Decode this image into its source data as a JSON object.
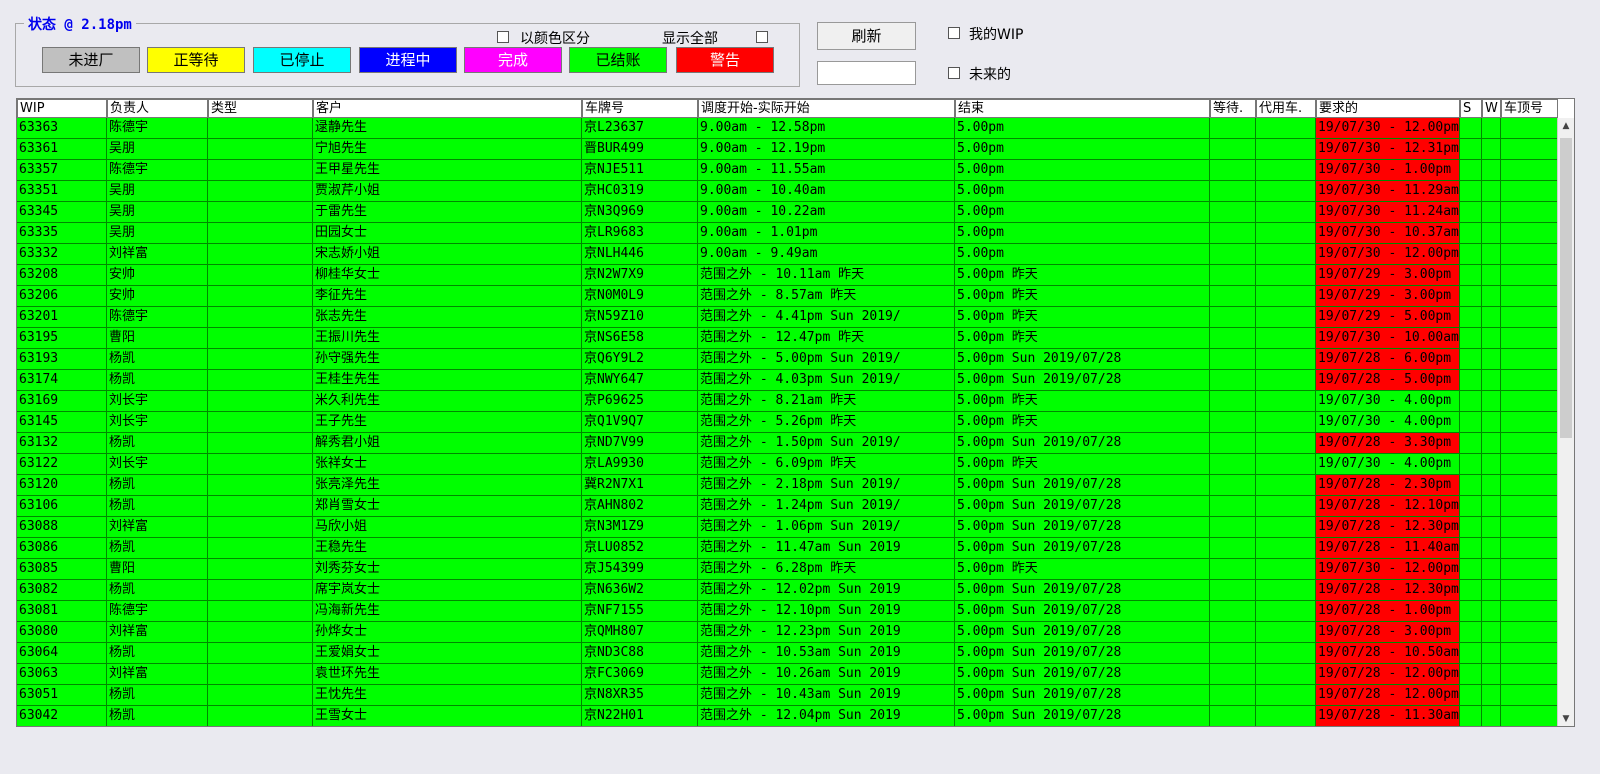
{
  "status": {
    "title": "状态 @ 2.18pm"
  },
  "status_buttons": [
    {
      "label": "未进厂",
      "bg": "#c0c0c0",
      "fg": "#000000"
    },
    {
      "label": "正等待",
      "bg": "#ffff00",
      "fg": "#000000"
    },
    {
      "label": "已停止",
      "bg": "#00ffff",
      "fg": "#000000"
    },
    {
      "label": "进程中",
      "bg": "#0000ff",
      "fg": "#ffffff"
    },
    {
      "label": "完成",
      "bg": "#ff00ff",
      "fg": "#ffffff"
    },
    {
      "label": "已结账",
      "bg": "#00ff00",
      "fg": "#000000"
    },
    {
      "label": "警告",
      "bg": "#ff0000",
      "fg": "#ffffff"
    }
  ],
  "options": {
    "color_label": "以颜色区分",
    "show_all_label": "显示全部",
    "my_wip_label": "我的WIP",
    "future_label": "未来的"
  },
  "toolbar": {
    "refresh_label": "刷新",
    "filter_value": ""
  },
  "columns": [
    "WIP",
    "负责人",
    "类型",
    "客户",
    "车牌号",
    "调度开始-实际开始",
    "结束",
    "等待.",
    "代用车.",
    "要求的",
    "S",
    "W",
    "车顶号"
  ],
  "rows": [
    {
      "wip": "63363",
      "owner": "陈德宇",
      "type": "",
      "customer": "逯静先生",
      "plate": "京L23637",
      "start": "9.00am - 12.58pm",
      "end": "5.00pm",
      "wait": "",
      "loan": "",
      "req": "19/07/30 - 12.00pm",
      "req_red": true,
      "s": "",
      "w": "",
      "roof": ""
    },
    {
      "wip": "63361",
      "owner": "吴朋",
      "type": "",
      "customer": "宁旭先生",
      "plate": "晋BUR499",
      "start": "9.00am - 12.19pm",
      "end": "5.00pm",
      "wait": "",
      "loan": "",
      "req": "19/07/30 - 12.31pm",
      "req_red": true,
      "s": "",
      "w": "",
      "roof": ""
    },
    {
      "wip": "63357",
      "owner": "陈德宇",
      "type": "",
      "customer": "王甲星先生",
      "plate": "京NJE511",
      "start": "9.00am - 11.55am",
      "end": "5.00pm",
      "wait": "",
      "loan": "",
      "req": "19/07/30 - 1.00pm",
      "req_red": true,
      "s": "",
      "w": "",
      "roof": ""
    },
    {
      "wip": "63351",
      "owner": "吴朋",
      "type": "",
      "customer": "贾淑芹小姐",
      "plate": "京HC0319",
      "start": "9.00am - 10.40am",
      "end": "5.00pm",
      "wait": "",
      "loan": "",
      "req": "19/07/30 - 11.29am",
      "req_red": true,
      "s": "",
      "w": "",
      "roof": ""
    },
    {
      "wip": "63345",
      "owner": "吴朋",
      "type": "",
      "customer": "于雷先生",
      "plate": "京N3Q969",
      "start": "9.00am - 10.22am",
      "end": "5.00pm",
      "wait": "",
      "loan": "",
      "req": "19/07/30 - 11.24am",
      "req_red": true,
      "s": "",
      "w": "",
      "roof": ""
    },
    {
      "wip": "63335",
      "owner": "吴朋",
      "type": "",
      "customer": "田园女士",
      "plate": "京LR9683",
      "start": "9.00am - 1.01pm",
      "end": "5.00pm",
      "wait": "",
      "loan": "",
      "req": "19/07/30 - 10.37am",
      "req_red": true,
      "s": "",
      "w": "",
      "roof": ""
    },
    {
      "wip": "63332",
      "owner": "刘祥富",
      "type": "",
      "customer": "宋志娇小姐",
      "plate": "京NLH446",
      "start": "9.00am - 9.49am",
      "end": "5.00pm",
      "wait": "",
      "loan": "",
      "req": "19/07/30 - 12.00pm",
      "req_red": true,
      "s": "",
      "w": "",
      "roof": ""
    },
    {
      "wip": "63208",
      "owner": "安帅",
      "type": "",
      "customer": "柳桂华女士",
      "plate": "京N2W7X9",
      "start": "范围之外 - 10.11am 昨天",
      "end": "5.00pm 昨天",
      "wait": "",
      "loan": "",
      "req": "19/07/29 - 3.00pm",
      "req_red": true,
      "s": "",
      "w": "",
      "roof": ""
    },
    {
      "wip": "63206",
      "owner": "安帅",
      "type": "",
      "customer": "李征先生",
      "plate": "京N0M0L9",
      "start": "范围之外 - 8.57am 昨天",
      "end": "5.00pm 昨天",
      "wait": "",
      "loan": "",
      "req": "19/07/29 - 3.00pm",
      "req_red": true,
      "s": "",
      "w": "",
      "roof": ""
    },
    {
      "wip": "63201",
      "owner": "陈德宇",
      "type": "",
      "customer": "张志先生",
      "plate": "京N59Z10",
      "start": "范围之外 - 4.41pm Sun 2019/",
      "end": "5.00pm 昨天",
      "wait": "",
      "loan": "",
      "req": "19/07/29 - 5.00pm",
      "req_red": true,
      "s": "",
      "w": "",
      "roof": ""
    },
    {
      "wip": "63195",
      "owner": "曹阳",
      "type": "",
      "customer": "王振川先生",
      "plate": "京NS6E58",
      "start": "范围之外 - 12.47pm 昨天",
      "end": "5.00pm 昨天",
      "wait": "",
      "loan": "",
      "req": "19/07/30 - 10.00am",
      "req_red": true,
      "s": "",
      "w": "",
      "roof": ""
    },
    {
      "wip": "63193",
      "owner": "杨凯",
      "type": "",
      "customer": "孙守强先生",
      "plate": "京Q6Y9L2",
      "start": "范围之外 - 5.00pm Sun 2019/",
      "end": "5.00pm Sun 2019/07/28",
      "wait": "",
      "loan": "",
      "req": "19/07/28 - 6.00pm",
      "req_red": true,
      "s": "",
      "w": "",
      "roof": ""
    },
    {
      "wip": "63174",
      "owner": "杨凯",
      "type": "",
      "customer": "王桂生先生",
      "plate": "京NWY647",
      "start": "范围之外 - 4.03pm Sun 2019/",
      "end": "5.00pm Sun 2019/07/28",
      "wait": "",
      "loan": "",
      "req": "19/07/28 - 5.00pm",
      "req_red": true,
      "s": "",
      "w": "",
      "roof": ""
    },
    {
      "wip": "63169",
      "owner": "刘长宇",
      "type": "",
      "customer": "米久利先生",
      "plate": "京P69625",
      "start": "范围之外 - 8.21am 昨天",
      "end": "5.00pm 昨天",
      "wait": "",
      "loan": "",
      "req": "19/07/30 - 4.00pm",
      "req_red": false,
      "s": "",
      "w": "",
      "roof": ""
    },
    {
      "wip": "63145",
      "owner": "刘长宇",
      "type": "",
      "customer": "王子先生",
      "plate": "京Q1V9Q7",
      "start": "范围之外 - 5.26pm 昨天",
      "end": "5.00pm 昨天",
      "wait": "",
      "loan": "",
      "req": "19/07/30 - 4.00pm",
      "req_red": false,
      "s": "",
      "w": "",
      "roof": ""
    },
    {
      "wip": "63132",
      "owner": "杨凯",
      "type": "",
      "customer": "解秀君小姐",
      "plate": "京ND7V99",
      "start": "范围之外 - 1.50pm Sun 2019/",
      "end": "5.00pm Sun 2019/07/28",
      "wait": "",
      "loan": "",
      "req": "19/07/28 - 3.30pm",
      "req_red": true,
      "s": "",
      "w": "",
      "roof": ""
    },
    {
      "wip": "63122",
      "owner": "刘长宇",
      "type": "",
      "customer": "张祥女士",
      "plate": "京LA9930",
      "start": "范围之外 - 6.09pm 昨天",
      "end": "5.00pm 昨天",
      "wait": "",
      "loan": "",
      "req": "19/07/30 - 4.00pm",
      "req_red": false,
      "s": "",
      "w": "",
      "roof": ""
    },
    {
      "wip": "63120",
      "owner": "杨凯",
      "type": "",
      "customer": "张亮泽先生",
      "plate": "冀R2N7X1",
      "start": "范围之外 - 2.18pm Sun 2019/",
      "end": "5.00pm Sun 2019/07/28",
      "wait": "",
      "loan": "",
      "req": "19/07/28 - 2.30pm",
      "req_red": true,
      "s": "",
      "w": "",
      "roof": ""
    },
    {
      "wip": "63106",
      "owner": "杨凯",
      "type": "",
      "customer": "郑肖雪女士",
      "plate": "京AHN802",
      "start": "范围之外 - 1.24pm Sun 2019/",
      "end": "5.00pm Sun 2019/07/28",
      "wait": "",
      "loan": "",
      "req": "19/07/28 - 12.10pm",
      "req_red": true,
      "s": "",
      "w": "",
      "roof": ""
    },
    {
      "wip": "63088",
      "owner": "刘祥富",
      "type": "",
      "customer": "马欣小姐",
      "plate": "京N3M1Z9",
      "start": "范围之外 - 1.06pm Sun 2019/",
      "end": "5.00pm Sun 2019/07/28",
      "wait": "",
      "loan": "",
      "req": "19/07/28 - 12.30pm",
      "req_red": true,
      "s": "",
      "w": "",
      "roof": ""
    },
    {
      "wip": "63086",
      "owner": "杨凯",
      "type": "",
      "customer": "王稳先生",
      "plate": "京LU0852",
      "start": "范围之外 - 11.47am Sun 2019",
      "end": "5.00pm Sun 2019/07/28",
      "wait": "",
      "loan": "",
      "req": "19/07/28 - 11.40am",
      "req_red": true,
      "s": "",
      "w": "",
      "roof": ""
    },
    {
      "wip": "63085",
      "owner": "曹阳",
      "type": "",
      "customer": "刘秀芬女士",
      "plate": "京J54399",
      "start": "范围之外 - 6.28pm 昨天",
      "end": "5.00pm 昨天",
      "wait": "",
      "loan": "",
      "req": "19/07/30 - 12.00pm",
      "req_red": true,
      "s": "",
      "w": "",
      "roof": ""
    },
    {
      "wip": "63082",
      "owner": "杨凯",
      "type": "",
      "customer": "席宇岚女士",
      "plate": "京N636W2",
      "start": "范围之外 - 12.02pm Sun 2019",
      "end": "5.00pm Sun 2019/07/28",
      "wait": "",
      "loan": "",
      "req": "19/07/28 - 12.30pm",
      "req_red": true,
      "s": "",
      "w": "",
      "roof": ""
    },
    {
      "wip": "63081",
      "owner": "陈德宇",
      "type": "",
      "customer": "冯海新先生",
      "plate": "京NF7155",
      "start": "范围之外 - 12.10pm Sun 2019",
      "end": "5.00pm Sun 2019/07/28",
      "wait": "",
      "loan": "",
      "req": "19/07/28 - 1.00pm",
      "req_red": true,
      "s": "",
      "w": "",
      "roof": ""
    },
    {
      "wip": "63080",
      "owner": "刘祥富",
      "type": "",
      "customer": "孙烨女士",
      "plate": "京QMH807",
      "start": "范围之外 - 12.23pm Sun 2019",
      "end": "5.00pm Sun 2019/07/28",
      "wait": "",
      "loan": "",
      "req": "19/07/28 - 3.00pm",
      "req_red": true,
      "s": "",
      "w": "",
      "roof": ""
    },
    {
      "wip": "63064",
      "owner": "杨凯",
      "type": "",
      "customer": "王爱娟女士",
      "plate": "京ND3C88",
      "start": "范围之外 - 10.53am Sun 2019",
      "end": "5.00pm Sun 2019/07/28",
      "wait": "",
      "loan": "",
      "req": "19/07/28 - 10.50am",
      "req_red": true,
      "s": "",
      "w": "",
      "roof": ""
    },
    {
      "wip": "63063",
      "owner": "刘祥富",
      "type": "",
      "customer": "袁世环先生",
      "plate": "京FC3069",
      "start": "范围之外 - 10.26am Sun 2019",
      "end": "5.00pm Sun 2019/07/28",
      "wait": "",
      "loan": "",
      "req": "19/07/28 - 12.00pm",
      "req_red": true,
      "s": "",
      "w": "",
      "roof": ""
    },
    {
      "wip": "63051",
      "owner": "杨凯",
      "type": "",
      "customer": "王忱先生",
      "plate": "京N8XR35",
      "start": "范围之外 - 10.43am Sun 2019",
      "end": "5.00pm Sun 2019/07/28",
      "wait": "",
      "loan": "",
      "req": "19/07/28 - 12.00pm",
      "req_red": true,
      "s": "",
      "w": "",
      "roof": ""
    },
    {
      "wip": "63042",
      "owner": "杨凯",
      "type": "",
      "customer": "王雪女士",
      "plate": "京N22H01",
      "start": "范围之外 - 12.04pm Sun 2019",
      "end": "5.00pm Sun 2019/07/28",
      "wait": "",
      "loan": "",
      "req": "19/07/28 - 11.30am",
      "req_red": true,
      "s": "",
      "w": "",
      "roof": ""
    }
  ]
}
